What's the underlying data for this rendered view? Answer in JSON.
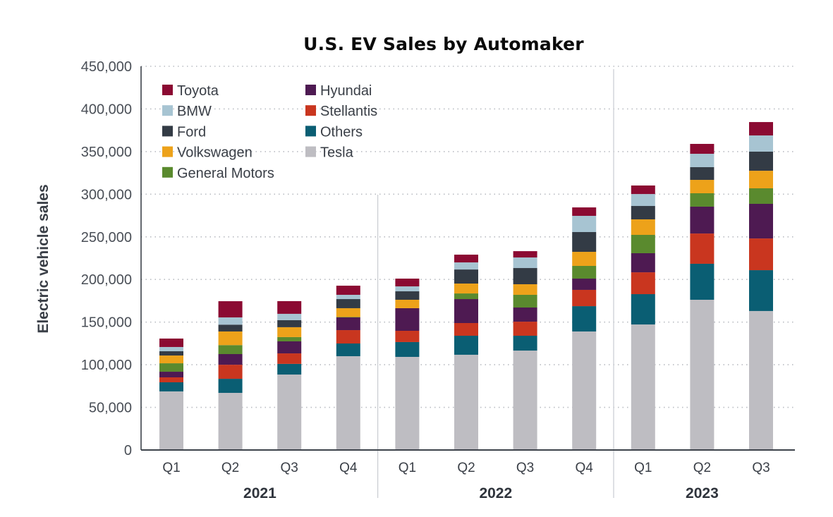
{
  "chart_data": {
    "type": "bar",
    "stacked": true,
    "title": "U.S. EV Sales by Automaker",
    "xlabel": "",
    "ylabel": "Electric vehicle sales",
    "ylim": [
      0,
      450000
    ],
    "yticks": [
      0,
      50000,
      100000,
      150000,
      200000,
      250000,
      300000,
      350000,
      400000,
      450000
    ],
    "ytick_labels": [
      "0",
      "50,000",
      "100,000",
      "150,000",
      "200,000",
      "250,000",
      "300,000",
      "350,000",
      "400,000",
      "450,000"
    ],
    "grid": "horizontal dotted",
    "legend_position": "top-left",
    "categories": [
      "Q1",
      "Q2",
      "Q3",
      "Q4",
      "Q1",
      "Q2",
      "Q3",
      "Q4",
      "Q1",
      "Q2",
      "Q3"
    ],
    "groups": [
      {
        "label": "2021",
        "count": 4
      },
      {
        "label": "2022",
        "count": 4
      },
      {
        "label": "2023",
        "count": 3
      }
    ],
    "series": [
      {
        "name": "Tesla",
        "color": "#BEBDC2",
        "values": [
          68700,
          67000,
          88500,
          110000,
          109200,
          111700,
          116600,
          139000,
          147200,
          176200,
          163000
        ]
      },
      {
        "name": "Others",
        "color": "#0A5E73",
        "values": [
          10700,
          16500,
          12500,
          14900,
          17400,
          22300,
          17400,
          29700,
          35600,
          42200,
          47900
        ]
      },
      {
        "name": "Stellantis",
        "color": "#C9361F",
        "values": [
          5800,
          16500,
          12300,
          15700,
          13200,
          14900,
          16500,
          19100,
          25600,
          35500,
          37200
        ]
      },
      {
        "name": "Hyundai",
        "color": "#4E1A52",
        "values": [
          6600,
          12500,
          14100,
          14900,
          26500,
          28100,
          16600,
          13200,
          22400,
          31500,
          40600
        ]
      },
      {
        "name": "General Motors",
        "color": "#5A8A2E",
        "values": [
          9900,
          10500,
          5000,
          500,
          0,
          6600,
          14900,
          14900,
          21500,
          15700,
          18200
        ]
      },
      {
        "name": "Volkswagen",
        "color": "#EDA21A",
        "values": [
          9100,
          16000,
          11600,
          10300,
          9900,
          11600,
          12400,
          16500,
          18200,
          15700,
          20600
        ]
      },
      {
        "name": "Ford",
        "color": "#333B45",
        "values": [
          5000,
          8000,
          8300,
          10700,
          9900,
          16500,
          19000,
          23200,
          15700,
          14900,
          22400
        ]
      },
      {
        "name": "BMW",
        "color": "#A7C4D2",
        "values": [
          5000,
          8500,
          7400,
          5000,
          5800,
          8300,
          12400,
          19000,
          14000,
          15700,
          19000
        ]
      },
      {
        "name": "Toyota",
        "color": "#8B0A32",
        "values": [
          9900,
          19000,
          14900,
          10700,
          9100,
          9100,
          7400,
          9900,
          10000,
          11600,
          15700
        ]
      }
    ],
    "legend_order": [
      [
        "Toyota",
        "BMW",
        "Ford",
        "Volkswagen",
        "General Motors"
      ],
      [
        "Hyundai",
        "Stellantis",
        "Others",
        "Tesla"
      ]
    ]
  }
}
